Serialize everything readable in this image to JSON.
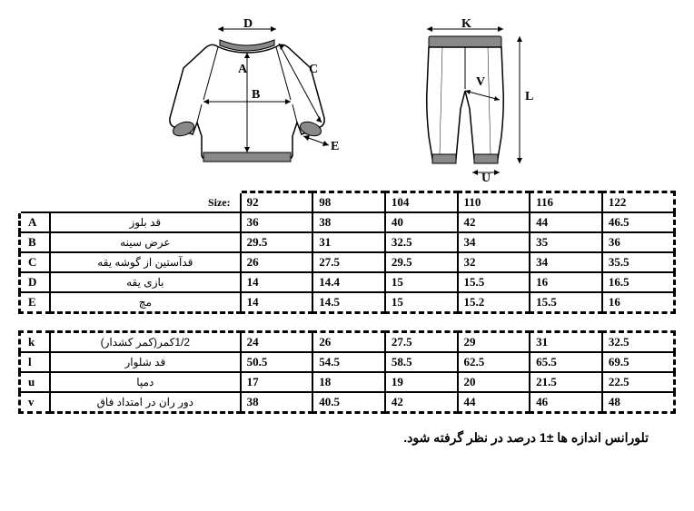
{
  "size_label": "Size:",
  "sizes": [
    "92",
    "98",
    "104",
    "110",
    "116",
    "122"
  ],
  "top_rows": [
    {
      "letter": "A",
      "desc": "قد بلوز",
      "vals": [
        "36",
        "38",
        "40",
        "42",
        "44",
        "46.5"
      ]
    },
    {
      "letter": "B",
      "desc": "عرض سینه",
      "vals": [
        "29.5",
        "31",
        "32.5",
        "34",
        "35",
        "36"
      ]
    },
    {
      "letter": "C",
      "desc": "قدآستین از گوشه یقه",
      "vals": [
        "26",
        "27.5",
        "29.5",
        "32",
        "34",
        "35.5"
      ]
    },
    {
      "letter": "D",
      "desc": "بازی یقه",
      "vals": [
        "14",
        "14.4",
        "15",
        "15.5",
        "16",
        "16.5"
      ]
    },
    {
      "letter": "E",
      "desc": "مچ",
      "vals": [
        "14",
        "14.5",
        "15",
        "15.2",
        "15.5",
        "16"
      ]
    }
  ],
  "bottom_rows": [
    {
      "letter": "k",
      "desc": "1/2کمر(کمر کشدار)",
      "vals": [
        "24",
        "26",
        "27.5",
        "29",
        "31",
        "32.5"
      ]
    },
    {
      "letter": "l",
      "desc": "قد شلوار",
      "vals": [
        "50.5",
        "54.5",
        "58.5",
        "62.5",
        "65.5",
        "69.5"
      ]
    },
    {
      "letter": "u",
      "desc": "دمپا",
      "vals": [
        "17",
        "18",
        "19",
        "20",
        "21.5",
        "22.5"
      ]
    },
    {
      "letter": "v",
      "desc": "دور ران در امتداد فاق",
      "vals": [
        "38",
        "40.5",
        "42",
        "44",
        "46",
        "48"
      ]
    }
  ],
  "note": "تلورانس اندازه ها  ±1 درصد در نظر گرفته شود.",
  "diagram": {
    "top_labels": {
      "A": "A",
      "B": "B",
      "C": "C",
      "D": "D",
      "E": "E"
    },
    "pants_labels": {
      "K": "K",
      "L": "L",
      "U": "U",
      "V": "V"
    }
  },
  "colors": {
    "line": "#000000",
    "rib_fill": "#7a7a7a",
    "bg": "#ffffff"
  }
}
